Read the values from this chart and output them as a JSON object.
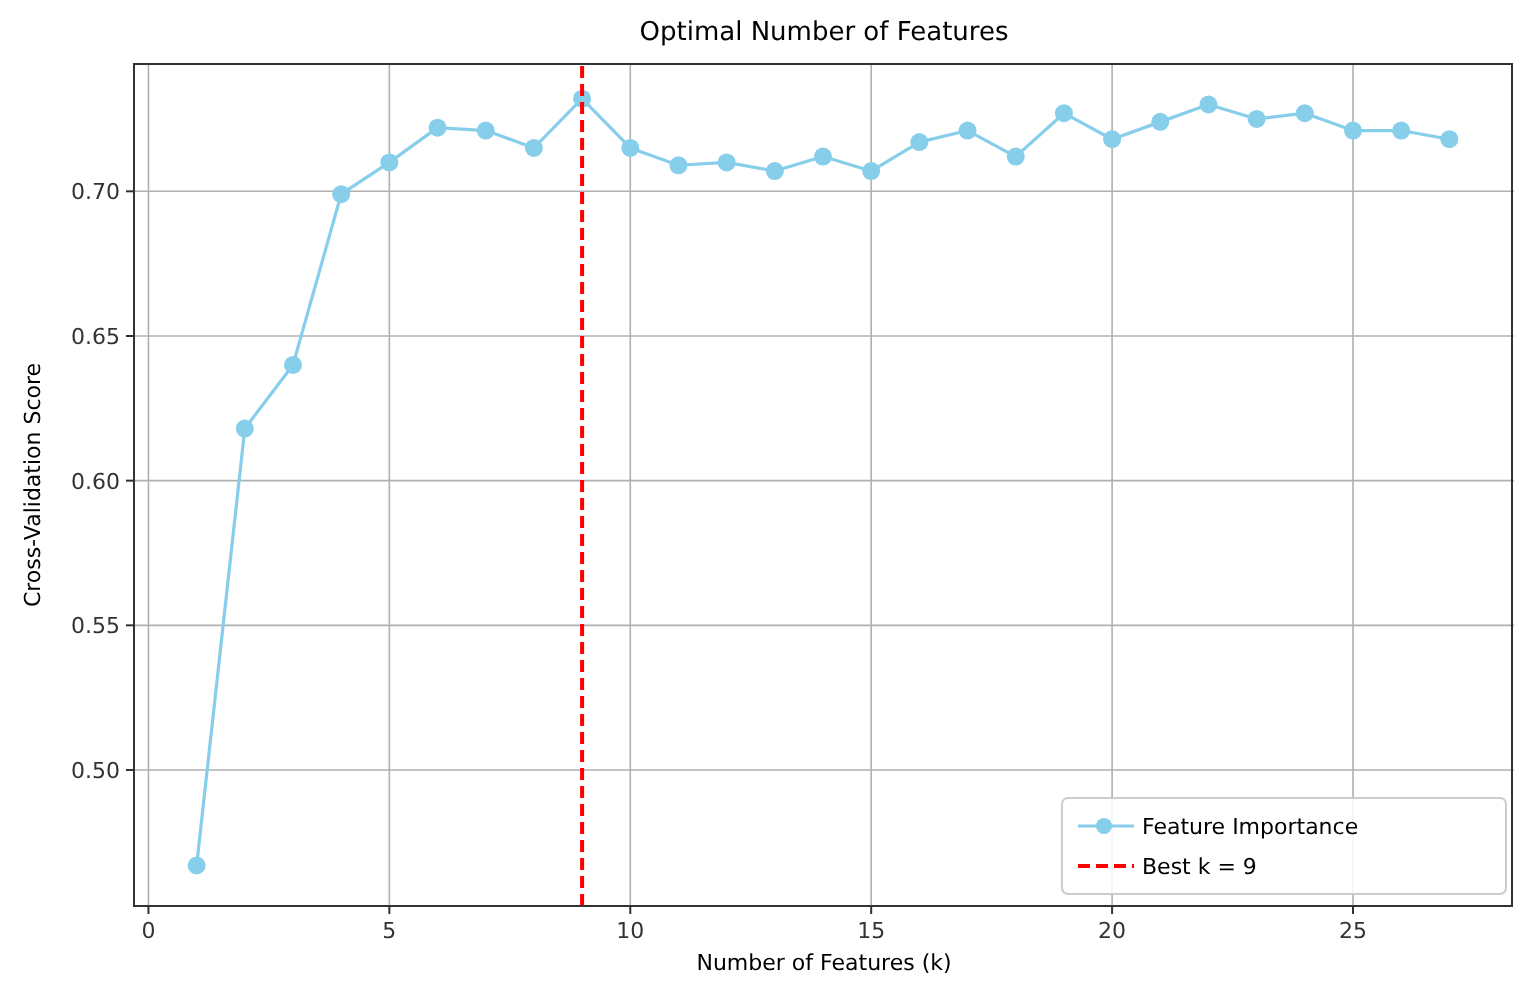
{
  "chart_data": {
    "type": "line",
    "title": "Optimal Number of Features",
    "xlabel": "Number of Features (k)",
    "ylabel": "Cross-Validation Score",
    "x": [
      1,
      2,
      3,
      4,
      5,
      6,
      7,
      8,
      9,
      10,
      11,
      12,
      13,
      14,
      15,
      16,
      17,
      18,
      19,
      20,
      21,
      22,
      23,
      24,
      25,
      26,
      27
    ],
    "series": [
      {
        "name": "Feature Importance",
        "color": "#87ceeb",
        "values": [
          0.467,
          0.618,
          0.64,
          0.699,
          0.71,
          0.722,
          0.721,
          0.715,
          0.732,
          0.715,
          0.709,
          0.71,
          0.707,
          0.712,
          0.707,
          0.717,
          0.721,
          0.712,
          0.727,
          0.718,
          0.724,
          0.73,
          0.725,
          0.727,
          0.721,
          0.721,
          0.718
        ]
      },
      {
        "name": "Best k = 9",
        "color": "#ff0000",
        "x": [
          9,
          9
        ],
        "values": [
          0.453,
          0.744
        ],
        "marker": "none",
        "line_style": "dashed"
      }
    ],
    "xlim": [
      -0.3,
      28.3
    ],
    "ylim": [
      0.453,
      0.744
    ],
    "xticks": [
      0,
      5,
      10,
      15,
      20,
      25
    ],
    "yticks": [
      {
        "value": 0.5,
        "label": "0.50"
      },
      {
        "value": 0.55,
        "label": "0.55"
      },
      {
        "value": 0.6,
        "label": "0.60"
      },
      {
        "value": 0.65,
        "label": "0.65"
      },
      {
        "value": 0.7,
        "label": "0.70"
      }
    ],
    "grid": true,
    "legend": "bottom right",
    "marker": "circle",
    "line_style": "solid"
  }
}
